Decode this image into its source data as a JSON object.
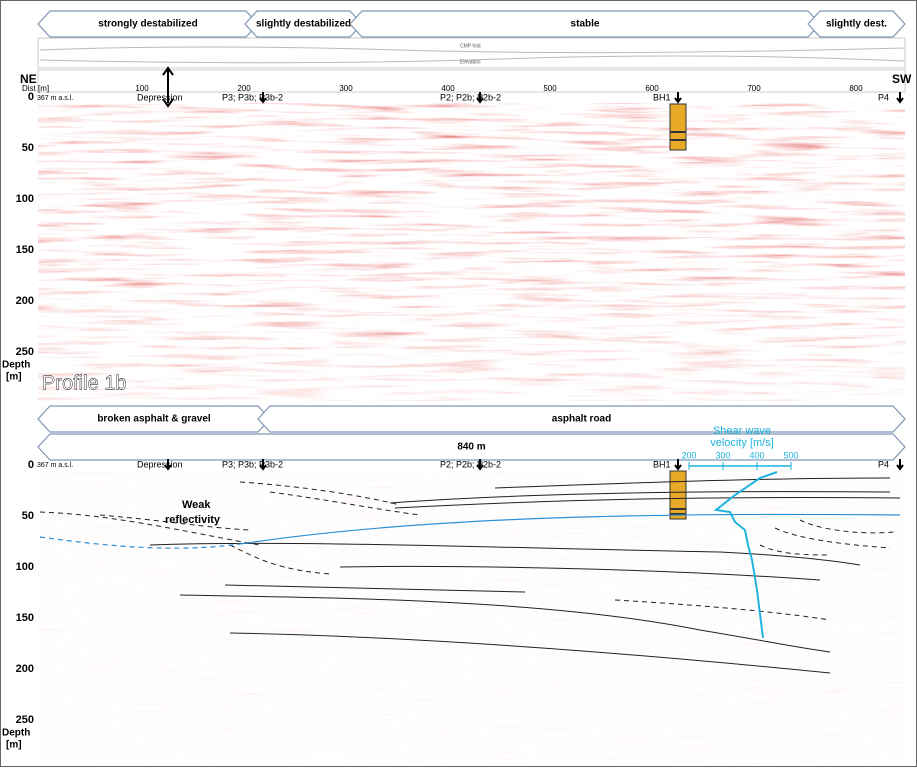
{
  "top_panel": {
    "zones": [
      "strongly destabilized",
      "slightly destabilized",
      "stable",
      "slightly dest."
    ],
    "tracks": [
      "CMP fold",
      "Elevation"
    ],
    "ne": "NE",
    "sw": "SW",
    "dist_label": "Dist [m]",
    "distances": [
      100,
      200,
      300,
      400,
      500,
      600,
      700,
      800
    ],
    "elevation": "367 m a.s.l.",
    "markers": [
      "Depression",
      "P3; P3b; P3b-2",
      "P2; P2b; P2b-2",
      "BH1",
      "P4"
    ],
    "depths": [
      0,
      50,
      100,
      150,
      200,
      250
    ],
    "depth_label": [
      "Depth",
      "[m]"
    ],
    "profile": "Profile 1b"
  },
  "bottom_panel": {
    "zones": [
      "broken asphalt & gravel",
      "asphalt road"
    ],
    "length": "840 m",
    "velocity_label": [
      "Shear wave",
      "velocity [m/s]"
    ],
    "velocities": [
      200,
      300,
      400,
      500
    ],
    "elevation": "367 m a.s.l.",
    "markers": [
      "Depression",
      "P3; P3b; P3b-2",
      "P2; P2b; P2b-2",
      "BH1",
      "P4"
    ],
    "annotation": [
      "Weak",
      "reflectivity"
    ],
    "depths": [
      0,
      50,
      100,
      150,
      200,
      250
    ],
    "depth_label": [
      "Depth",
      "[m]"
    ]
  }
}
